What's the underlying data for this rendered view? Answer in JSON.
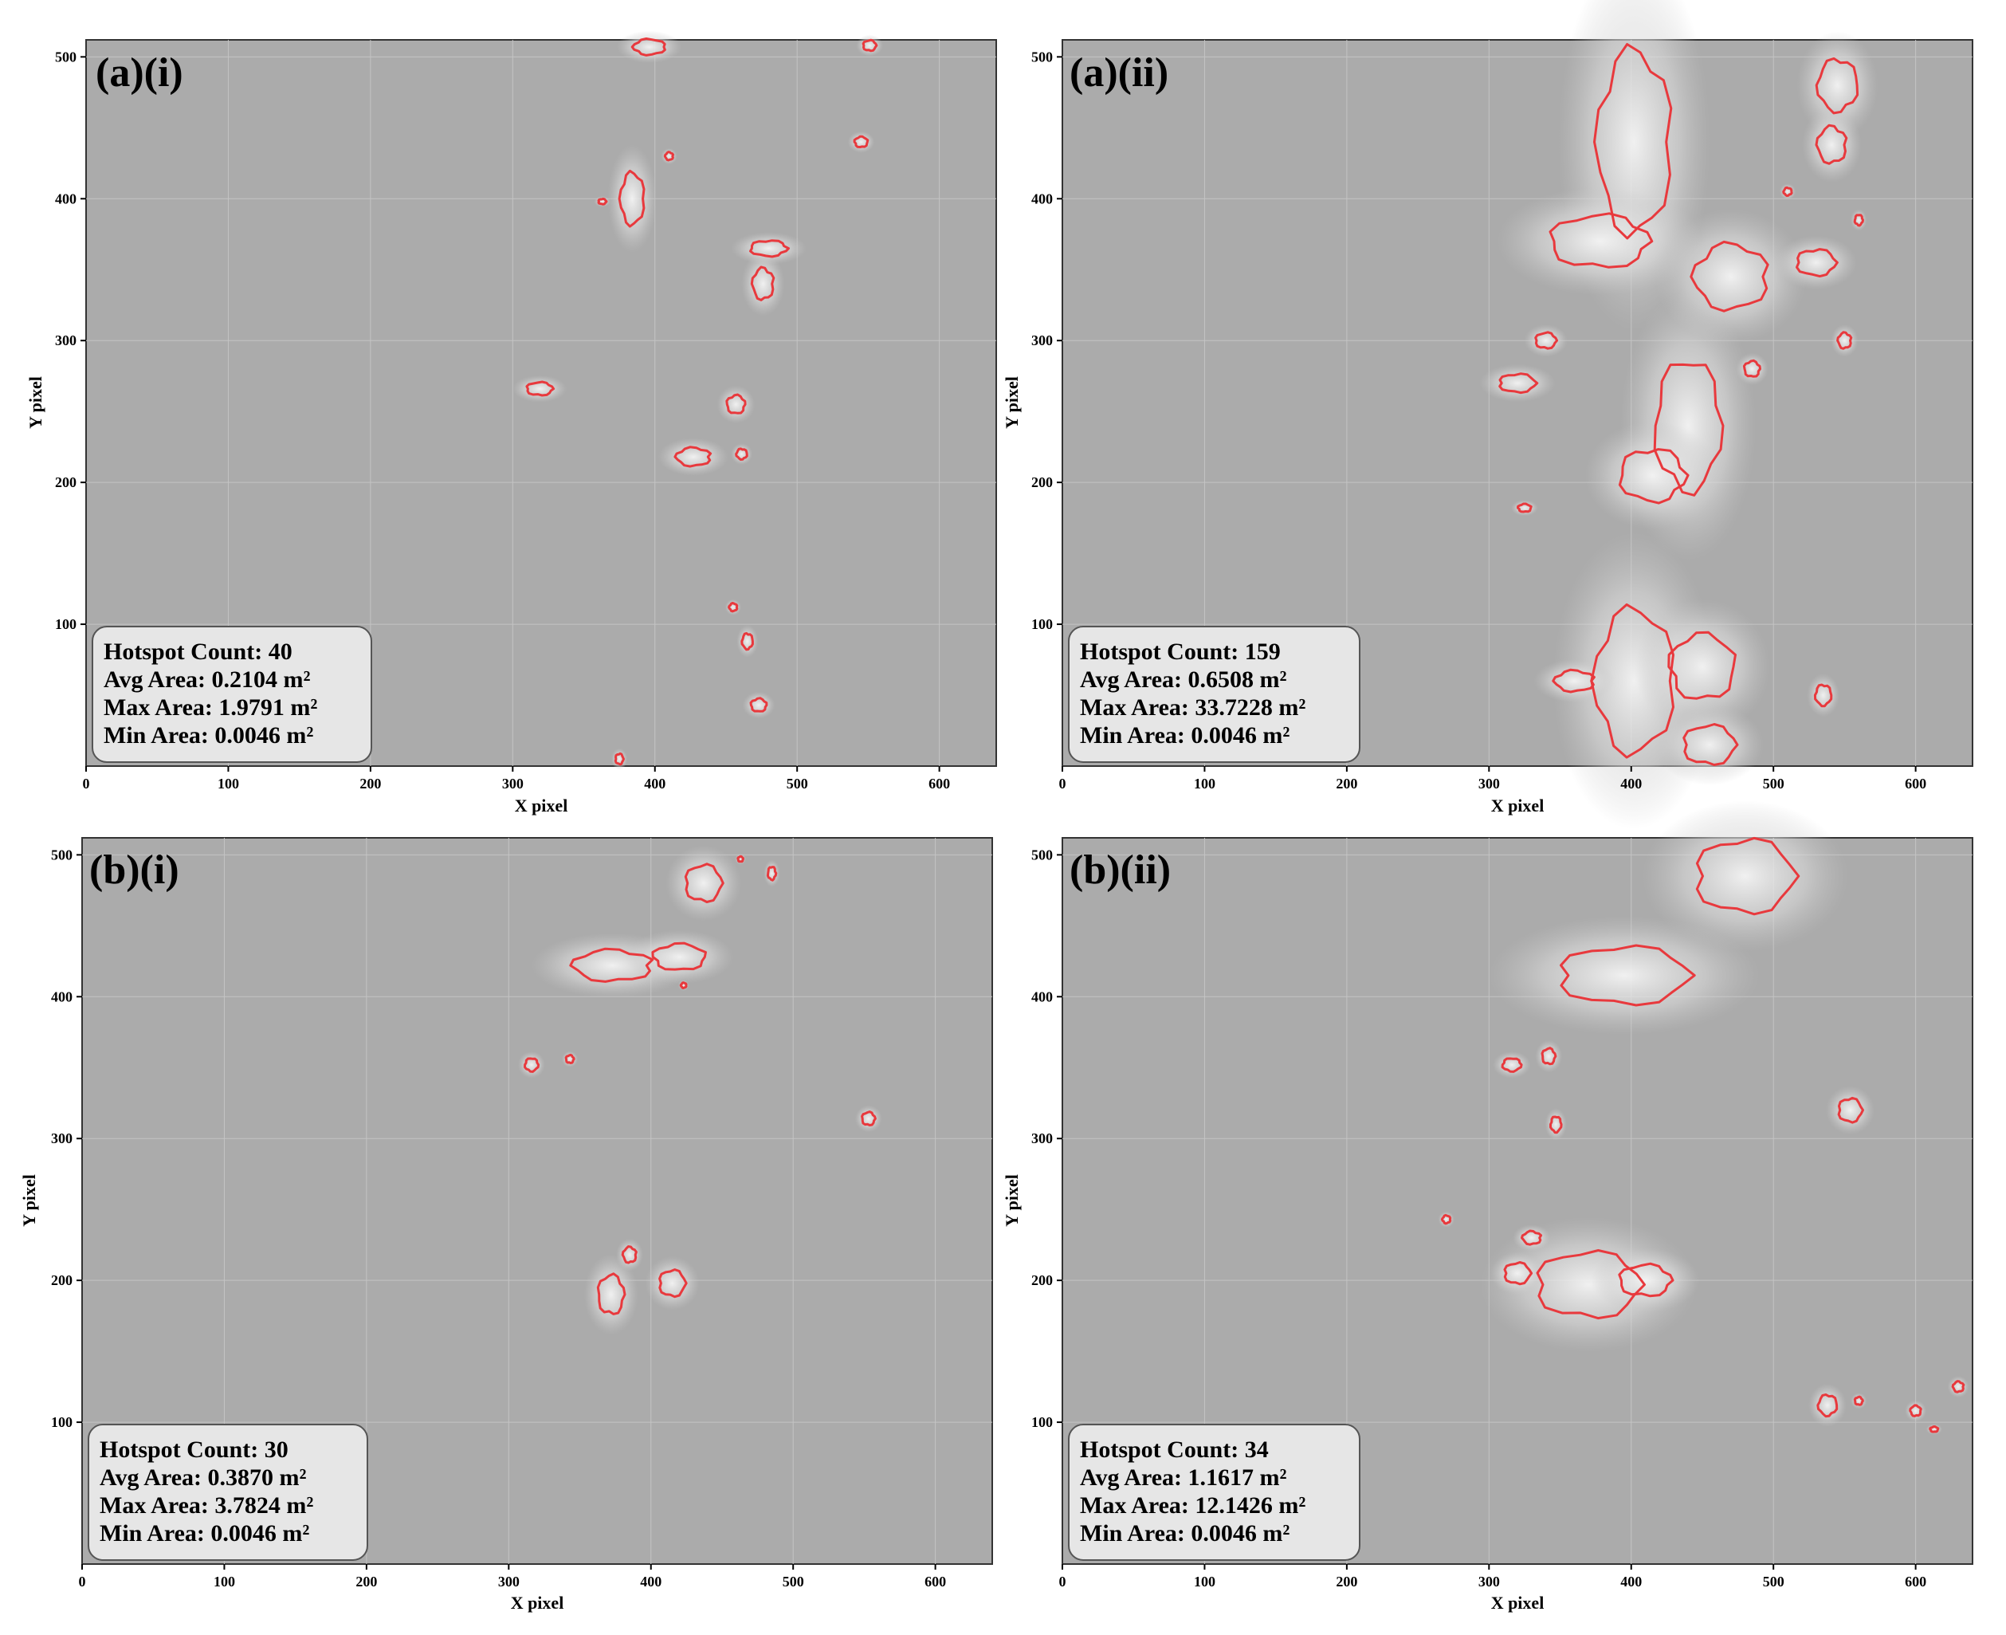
{
  "figure": {
    "panels": [
      {
        "label": "(a)(i)",
        "stats": {
          "count": "Hotspot Count: 40",
          "avg": "Avg Area: 0.2104 m²",
          "max": "Max Area: 1.9791 m²",
          "min": "Min Area: 0.0046 m²"
        }
      },
      {
        "label": "(a)(ii)",
        "stats": {
          "count": "Hotspot Count: 159",
          "avg": "Avg Area: 0.6508 m²",
          "max": "Max Area: 33.7228 m²",
          "min": "Min Area: 0.0046 m²"
        }
      },
      {
        "label": "(b)(i)",
        "stats": {
          "count": "Hotspot Count: 30",
          "avg": "Avg Area: 0.3870 m²",
          "max": "Max Area: 3.7824 m²",
          "min": "Min Area: 0.0046 m²"
        }
      },
      {
        "label": "(b)(ii)",
        "stats": {
          "count": "Hotspot Count: 34",
          "avg": "Avg Area: 1.1617 m²",
          "max": "Max Area: 12.1426 m²",
          "min": "Min Area: 0.0046 m²"
        }
      }
    ],
    "xlabel": "X pixel",
    "ylabel": "Y pixel",
    "xticks": [
      0,
      100,
      200,
      300,
      400,
      500,
      600
    ],
    "yticks": [
      100,
      200,
      300,
      400,
      500
    ],
    "xlim": [
      0,
      640
    ],
    "ylim": [
      0,
      512
    ],
    "colors": {
      "contour": "#e8393d",
      "background": "#a9a9a9",
      "bright": "#f2f2f2",
      "box_fill": "#e6e6e6",
      "box_border": "#555555"
    }
  },
  "chart_data": [
    {
      "type": "heatmap",
      "panel": "(a)(i)",
      "xlabel": "X pixel",
      "ylabel": "Y pixel",
      "xlim": [
        0,
        640
      ],
      "ylim": [
        0,
        512
      ],
      "grid": true,
      "hotspot_count": 40,
      "avg_area_m2": 0.2104,
      "max_area_m2": 1.9791,
      "min_area_m2": 0.0046,
      "hotspots": [
        {
          "x": 384,
          "y": 400,
          "rx": 9,
          "ry": 20
        },
        {
          "x": 480,
          "y": 365,
          "rx": 14,
          "ry": 6
        },
        {
          "x": 476,
          "y": 340,
          "rx": 8,
          "ry": 12
        },
        {
          "x": 457,
          "y": 255,
          "rx": 7,
          "ry": 7
        },
        {
          "x": 427,
          "y": 218,
          "rx": 13,
          "ry": 7
        },
        {
          "x": 319,
          "y": 266,
          "rx": 10,
          "ry": 5
        },
        {
          "x": 473,
          "y": 43,
          "rx": 6,
          "ry": 5
        },
        {
          "x": 465,
          "y": 88,
          "rx": 4,
          "ry": 6
        },
        {
          "x": 545,
          "y": 440,
          "rx": 5,
          "ry": 4
        },
        {
          "x": 396,
          "y": 507,
          "rx": 12,
          "ry": 6
        },
        {
          "x": 551,
          "y": 508,
          "rx": 5,
          "ry": 4
        },
        {
          "x": 461,
          "y": 220,
          "rx": 4,
          "ry": 4
        },
        {
          "x": 363,
          "y": 398,
          "rx": 3,
          "ry": 2
        },
        {
          "x": 410,
          "y": 430,
          "rx": 3,
          "ry": 3
        },
        {
          "x": 375,
          "y": 5,
          "rx": 3,
          "ry": 4
        },
        {
          "x": 455,
          "y": 112,
          "rx": 3,
          "ry": 3
        }
      ]
    },
    {
      "type": "heatmap",
      "panel": "(a)(ii)",
      "xlabel": "X pixel",
      "ylabel": "Y pixel",
      "xlim": [
        0,
        640
      ],
      "ylim": [
        0,
        512
      ],
      "grid": true,
      "hotspot_count": 159,
      "avg_area_m2": 0.6508,
      "max_area_m2": 33.7228,
      "min_area_m2": 0.0046,
      "hotspots": [
        {
          "x": 402,
          "y": 440,
          "rx": 28,
          "ry": 70
        },
        {
          "x": 378,
          "y": 370,
          "rx": 38,
          "ry": 20
        },
        {
          "x": 470,
          "y": 345,
          "rx": 28,
          "ry": 25
        },
        {
          "x": 530,
          "y": 355,
          "rx": 15,
          "ry": 10
        },
        {
          "x": 545,
          "y": 480,
          "rx": 15,
          "ry": 20
        },
        {
          "x": 541,
          "y": 438,
          "rx": 11,
          "ry": 14
        },
        {
          "x": 440,
          "y": 240,
          "rx": 25,
          "ry": 50
        },
        {
          "x": 415,
          "y": 205,
          "rx": 25,
          "ry": 20
        },
        {
          "x": 320,
          "y": 270,
          "rx": 14,
          "ry": 7
        },
        {
          "x": 340,
          "y": 300,
          "rx": 8,
          "ry": 6
        },
        {
          "x": 402,
          "y": 60,
          "rx": 30,
          "ry": 55
        },
        {
          "x": 450,
          "y": 70,
          "rx": 25,
          "ry": 25
        },
        {
          "x": 360,
          "y": 60,
          "rx": 15,
          "ry": 8
        },
        {
          "x": 455,
          "y": 15,
          "rx": 20,
          "ry": 15
        },
        {
          "x": 535,
          "y": 50,
          "rx": 6,
          "ry": 8
        },
        {
          "x": 550,
          "y": 300,
          "rx": 5,
          "ry": 6
        },
        {
          "x": 325,
          "y": 182,
          "rx": 5,
          "ry": 3
        },
        {
          "x": 485,
          "y": 280,
          "rx": 6,
          "ry": 6
        },
        {
          "x": 510,
          "y": 405,
          "rx": 3,
          "ry": 3
        },
        {
          "x": 560,
          "y": 385,
          "rx": 3,
          "ry": 4
        }
      ]
    },
    {
      "type": "heatmap",
      "panel": "(b)(i)",
      "xlabel": "X pixel",
      "ylabel": "Y pixel",
      "xlim": [
        0,
        640
      ],
      "ylim": [
        0,
        512
      ],
      "grid": true,
      "hotspot_count": 30,
      "avg_area_m2": 0.387,
      "max_area_m2": 3.7824,
      "min_area_m2": 0.0046,
      "hotspots": [
        {
          "x": 373,
          "y": 422,
          "rx": 30,
          "ry": 12
        },
        {
          "x": 420,
          "y": 428,
          "rx": 20,
          "ry": 10
        },
        {
          "x": 437,
          "y": 480,
          "rx": 14,
          "ry": 14
        },
        {
          "x": 372,
          "y": 190,
          "rx": 10,
          "ry": 15
        },
        {
          "x": 415,
          "y": 198,
          "rx": 10,
          "ry": 10
        },
        {
          "x": 385,
          "y": 218,
          "rx": 5,
          "ry": 6
        },
        {
          "x": 316,
          "y": 352,
          "rx": 5,
          "ry": 5
        },
        {
          "x": 343,
          "y": 356,
          "rx": 3,
          "ry": 3
        },
        {
          "x": 553,
          "y": 314,
          "rx": 5,
          "ry": 5
        },
        {
          "x": 463,
          "y": 497,
          "rx": 2,
          "ry": 2
        },
        {
          "x": 485,
          "y": 487,
          "rx": 3,
          "ry": 5
        },
        {
          "x": 423,
          "y": 408,
          "rx": 2,
          "ry": 2
        }
      ]
    },
    {
      "type": "heatmap",
      "panel": "(b)(ii)",
      "xlabel": "X pixel",
      "ylabel": "Y pixel",
      "xlim": [
        0,
        640
      ],
      "ylim": [
        0,
        512
      ],
      "grid": true,
      "hotspot_count": 34,
      "avg_area_m2": 1.1617,
      "max_area_m2": 12.1426,
      "min_area_m2": 0.0046,
      "hotspots": [
        {
          "x": 395,
          "y": 415,
          "rx": 50,
          "ry": 22
        },
        {
          "x": 480,
          "y": 485,
          "rx": 38,
          "ry": 28
        },
        {
          "x": 370,
          "y": 197,
          "rx": 40,
          "ry": 25
        },
        {
          "x": 410,
          "y": 200,
          "rx": 20,
          "ry": 12
        },
        {
          "x": 320,
          "y": 205,
          "rx": 10,
          "ry": 8
        },
        {
          "x": 330,
          "y": 230,
          "rx": 7,
          "ry": 5
        },
        {
          "x": 316,
          "y": 352,
          "rx": 7,
          "ry": 5
        },
        {
          "x": 342,
          "y": 358,
          "rx": 5,
          "ry": 6
        },
        {
          "x": 347,
          "y": 310,
          "rx": 4,
          "ry": 6
        },
        {
          "x": 554,
          "y": 320,
          "rx": 9,
          "ry": 9
        },
        {
          "x": 270,
          "y": 243,
          "rx": 3,
          "ry": 3
        },
        {
          "x": 538,
          "y": 112,
          "rx": 7,
          "ry": 8
        },
        {
          "x": 560,
          "y": 115,
          "rx": 3,
          "ry": 3
        },
        {
          "x": 600,
          "y": 108,
          "rx": 4,
          "ry": 4
        },
        {
          "x": 613,
          "y": 95,
          "rx": 3,
          "ry": 2
        },
        {
          "x": 630,
          "y": 125,
          "rx": 4,
          "ry": 4
        }
      ]
    }
  ]
}
